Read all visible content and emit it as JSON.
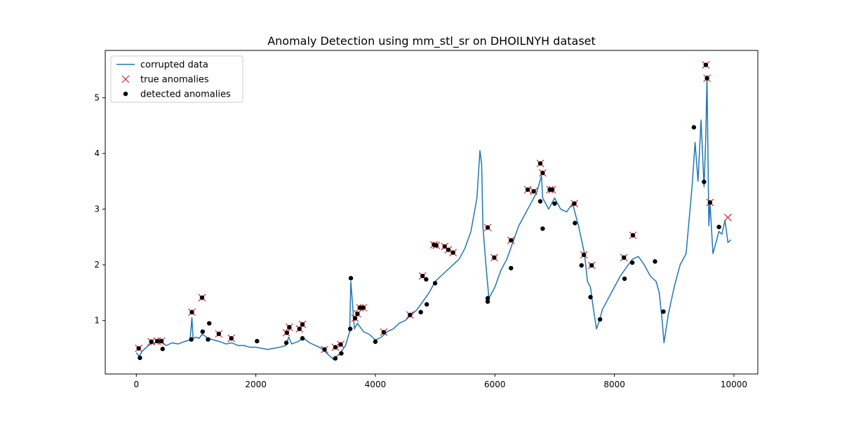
{
  "chart_data": {
    "type": "line",
    "title": "Anomaly Detection using mm_stl_sr on DHOILNYH dataset",
    "xlabel": "",
    "ylabel": "",
    "xlim": [
      -520,
      10400
    ],
    "ylim": [
      0.04,
      5.85
    ],
    "x_ticks": [
      0,
      2000,
      4000,
      6000,
      8000,
      10000
    ],
    "y_ticks": [
      1,
      2,
      3,
      4,
      5
    ],
    "grid": false,
    "legend_position": "top-left",
    "colors": {
      "line": "#1f77b4",
      "true_anomaly": "#d62728",
      "detected_anomaly": "#000000"
    },
    "legend": [
      {
        "label": "corrupted data",
        "marker": "line"
      },
      {
        "label": "true anomalies",
        "marker": "x"
      },
      {
        "label": "detected anomalies",
        "marker": "dot"
      }
    ],
    "series": [
      {
        "name": "corrupted data",
        "kind": "line",
        "x": [
          0,
          50,
          100,
          200,
          300,
          400,
          500,
          600,
          700,
          800,
          900,
          930,
          950,
          1000,
          1050,
          1100,
          1150,
          1200,
          1300,
          1400,
          1500,
          1600,
          1700,
          1800,
          1900,
          2000,
          2100,
          2200,
          2300,
          2400,
          2500,
          2550,
          2600,
          2700,
          2800,
          2900,
          3000,
          3100,
          3200,
          3250,
          3300,
          3400,
          3500,
          3570,
          3590,
          3650,
          3700,
          3800,
          3900,
          4000,
          4100,
          4200,
          4300,
          4400,
          4500,
          4600,
          4700,
          4800,
          4900,
          5000,
          5100,
          5200,
          5300,
          5400,
          5500,
          5600,
          5700,
          5750,
          5780,
          5800,
          5850,
          5900,
          6000,
          6100,
          6200,
          6300,
          6400,
          6500,
          6600,
          6700,
          6780,
          6800,
          6900,
          7000,
          7100,
          7200,
          7300,
          7400,
          7500,
          7550,
          7600,
          7650,
          7700,
          7750,
          7800,
          7900,
          8000,
          8100,
          8200,
          8300,
          8400,
          8500,
          8600,
          8700,
          8750,
          8800,
          8830,
          8900,
          9000,
          9100,
          9200,
          9300,
          9350,
          9400,
          9450,
          9500,
          9530,
          9550,
          9580,
          9600,
          9650,
          9700,
          9750,
          9800,
          9850,
          9900,
          9950
        ],
        "y": [
          0.42,
          0.36,
          0.45,
          0.55,
          0.6,
          0.62,
          0.55,
          0.6,
          0.58,
          0.62,
          0.65,
          1.05,
          0.68,
          0.7,
          0.68,
          0.75,
          0.72,
          0.68,
          0.65,
          0.62,
          0.58,
          0.6,
          0.55,
          0.55,
          0.52,
          0.52,
          0.5,
          0.48,
          0.5,
          0.52,
          0.55,
          0.7,
          0.58,
          0.62,
          0.68,
          0.6,
          0.55,
          0.5,
          0.4,
          0.35,
          0.3,
          0.4,
          0.55,
          0.8,
          1.7,
          0.85,
          0.95,
          0.8,
          0.75,
          0.65,
          0.7,
          0.8,
          0.85,
          0.95,
          1.0,
          1.1,
          1.2,
          1.35,
          1.5,
          1.7,
          1.8,
          1.9,
          2.0,
          2.1,
          2.3,
          2.6,
          3.2,
          4.05,
          3.8,
          2.7,
          2.0,
          1.4,
          1.6,
          1.9,
          2.1,
          2.4,
          2.7,
          2.9,
          3.1,
          3.3,
          3.6,
          3.2,
          3.0,
          3.2,
          3.0,
          2.95,
          3.1,
          2.7,
          2.2,
          1.7,
          1.6,
          1.2,
          0.85,
          1.0,
          1.2,
          1.4,
          1.6,
          1.8,
          1.95,
          2.1,
          2.15,
          2.0,
          1.8,
          1.7,
          1.5,
          1.0,
          0.6,
          1.1,
          1.6,
          2.0,
          2.2,
          3.4,
          4.2,
          3.5,
          4.6,
          3.4,
          4.3,
          5.4,
          2.7,
          3.1,
          2.2,
          2.4,
          2.6,
          2.55,
          2.8,
          2.4,
          2.45
        ]
      },
      {
        "name": "true anomalies",
        "kind": "x",
        "x": [
          40,
          250,
          350,
          420,
          930,
          1100,
          1380,
          1590,
          2510,
          2560,
          2730,
          2780,
          3150,
          3330,
          3420,
          3660,
          3700,
          3740,
          3800,
          4140,
          4580,
          4790,
          4980,
          5020,
          5160,
          5220,
          5300,
          5880,
          5990,
          6270,
          6550,
          6650,
          6760,
          6800,
          6920,
          6960,
          7330,
          7490,
          7620,
          8160,
          8310,
          9530,
          9550,
          9600,
          9900
        ],
        "y": [
          0.5,
          0.62,
          0.63,
          0.63,
          1.15,
          1.41,
          0.76,
          0.68,
          0.78,
          0.88,
          0.85,
          0.93,
          0.48,
          0.52,
          0.57,
          1.04,
          1.12,
          1.23,
          1.23,
          0.79,
          1.1,
          1.8,
          2.36,
          2.35,
          2.33,
          2.27,
          2.22,
          2.67,
          2.13,
          2.44,
          3.35,
          3.32,
          3.82,
          3.65,
          3.35,
          3.35,
          3.1,
          2.18,
          1.99,
          2.13,
          2.53,
          5.59,
          5.35,
          3.12,
          2.85
        ]
      },
      {
        "name": "detected anomalies",
        "kind": "dot",
        "x": [
          40,
          60,
          250,
          350,
          420,
          440,
          920,
          930,
          1100,
          1110,
          1200,
          1220,
          1380,
          1590,
          2020,
          2510,
          2520,
          2560,
          2730,
          2780,
          2780,
          3150,
          3330,
          3330,
          3420,
          3430,
          3580,
          3590,
          3660,
          3700,
          3740,
          3800,
          4000,
          4140,
          4580,
          4760,
          4790,
          4850,
          4860,
          4980,
          5000,
          5020,
          5160,
          5220,
          5300,
          5880,
          5880,
          5880,
          5990,
          6270,
          6270,
          6550,
          6650,
          6760,
          6760,
          6800,
          6800,
          6920,
          6960,
          7000,
          7330,
          7340,
          7450,
          7490,
          7600,
          7620,
          7760,
          8160,
          8170,
          8300,
          8310,
          8680,
          8820,
          9330,
          9500,
          9530,
          9550,
          9600,
          9750
        ],
        "y": [
          0.5,
          0.33,
          0.62,
          0.63,
          0.63,
          0.49,
          0.66,
          1.15,
          1.41,
          0.8,
          0.66,
          0.95,
          0.76,
          0.68,
          0.63,
          0.6,
          0.78,
          0.88,
          0.85,
          0.68,
          0.93,
          0.48,
          0.52,
          0.32,
          0.57,
          0.41,
          0.85,
          1.76,
          1.04,
          1.12,
          1.23,
          1.23,
          0.62,
          0.79,
          1.1,
          1.15,
          1.8,
          1.74,
          1.29,
          2.36,
          1.67,
          2.35,
          2.33,
          2.27,
          2.22,
          2.67,
          1.34,
          1.4,
          2.13,
          2.44,
          1.94,
          3.35,
          3.32,
          3.82,
          3.14,
          3.65,
          2.65,
          3.35,
          3.35,
          3.1,
          3.1,
          2.75,
          1.99,
          2.18,
          1.42,
          1.99,
          1.02,
          2.13,
          1.75,
          2.04,
          2.53,
          2.06,
          1.16,
          4.47,
          3.49,
          5.59,
          5.35,
          3.12,
          2.68
        ]
      }
    ]
  }
}
